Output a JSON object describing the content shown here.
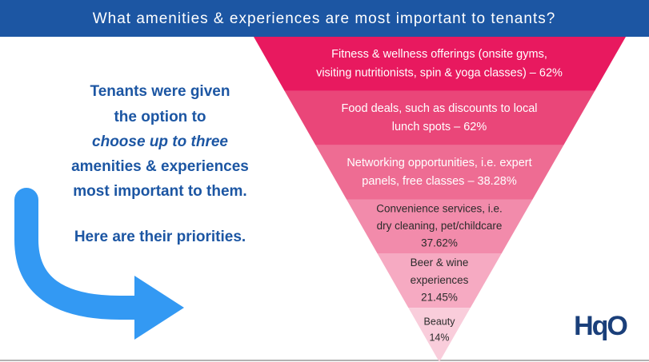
{
  "header": {
    "title": "What amenities & experiences are most important to tenants?"
  },
  "intro": {
    "lines": [
      {
        "text": "Tenants were given",
        "italic": false
      },
      {
        "text": "the option to",
        "italic": false
      },
      {
        "text": "choose up to three",
        "italic": true
      },
      {
        "text": "amenities & experiences",
        "italic": false
      },
      {
        "text": "most important to them.",
        "italic": false
      },
      {
        "text": "Here are their priorities.",
        "italic": false
      }
    ]
  },
  "funnel": {
    "levels": [
      {
        "lines": [
          "Fitness & wellness offerings (onsite gyms,",
          "visiting nutritionists, spin & yoga classes) – 62%"
        ],
        "color": "#e8195f",
        "text_color": "#ffffff"
      },
      {
        "lines": [
          "Food deals, such as discounts to local",
          "lunch spots – 62%"
        ],
        "color": "#ea4679",
        "text_color": "#ffffff"
      },
      {
        "lines": [
          "Networking opportunities, i.e. expert",
          "panels, free classes – 38.28%"
        ],
        "color": "#ee6c93",
        "text_color": "#ffffff"
      },
      {
        "lines": [
          "Convenience services, i.e.",
          "dry cleaning, pet/childcare",
          "37.62%"
        ],
        "color": "#f28bab",
        "text_color": "#2b2b2b"
      },
      {
        "lines": [
          "Beer & wine",
          "experiences",
          "21.45%"
        ],
        "color": "#f6aac2",
        "text_color": "#2b2b2b"
      },
      {
        "lines": [
          "Beauty",
          "14%"
        ],
        "color": "#f9cddb",
        "text_color": "#2b2b2b"
      }
    ]
  },
  "logo": "HqO"
}
